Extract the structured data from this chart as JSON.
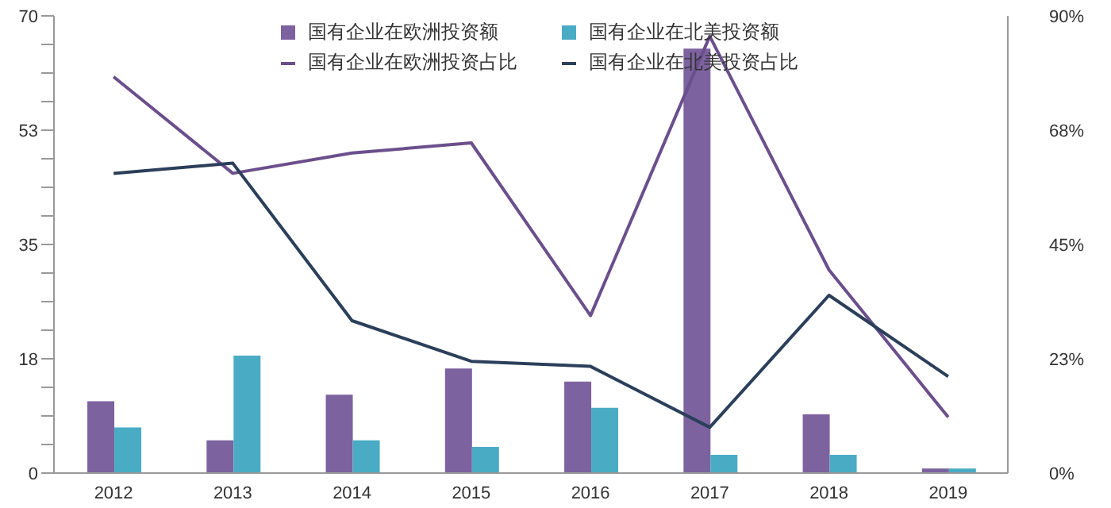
{
  "chart_data": {
    "type": "bar",
    "categories": [
      "2012",
      "2013",
      "2014",
      "2015",
      "2016",
      "2017",
      "2018",
      "2019"
    ],
    "series": [
      {
        "name": "国有企业在欧洲投资额",
        "color": "#7d62a0",
        "values": [
          11,
          5,
          12,
          16,
          14,
          65,
          9,
          0.7
        ]
      },
      {
        "name": "国有企业在北美投资额",
        "color": "#4aabc5",
        "values": [
          7,
          18,
          5,
          4,
          10,
          2.8,
          2.8,
          0.7
        ]
      },
      {
        "name": "国有企业在欧洲投资占比",
        "type": "line",
        "axis": "y2",
        "color": "#6b4f8c",
        "values": [
          78,
          59,
          63,
          65,
          31,
          86,
          40,
          11
        ]
      },
      {
        "name": "国有企业在北美投资占比",
        "type": "line",
        "axis": "y2",
        "color": "#2b3f5a",
        "values": [
          59,
          61,
          30,
          22,
          21,
          9,
          35,
          19
        ]
      }
    ],
    "ylim": [
      0,
      70
    ],
    "yticks": [
      0,
      {
        "value": 4.375,
        "label": null
      },
      {
        "value": 8.75,
        "label": null
      },
      {
        "value": 13.125,
        "label": null
      },
      {
        "value": 17.5,
        "label": "18"
      },
      {
        "value": 21.875,
        "label": null
      },
      {
        "value": 26.25,
        "label": null
      },
      {
        "value": 30.625,
        "label": null
      },
      35,
      {
        "value": 39.375,
        "label": null
      },
      {
        "value": 43.75,
        "label": null
      },
      {
        "value": 48.125,
        "label": null
      },
      {
        "value": 52.5,
        "label": "53"
      },
      {
        "value": 56.875,
        "label": null
      },
      {
        "value": 61.25,
        "label": null
      },
      {
        "value": 65.625,
        "label": null
      },
      70
    ],
    "y2lim": [
      0,
      90
    ],
    "y2ticks": [
      {
        "value": 0,
        "label": "0%"
      },
      {
        "value": 22.5,
        "label": "23%"
      },
      {
        "value": 45,
        "label": "45%"
      },
      {
        "value": 67.5,
        "label": "68%"
      },
      {
        "value": 90,
        "label": "90%"
      }
    ],
    "grid": false,
    "legend": "top",
    "marker": "none",
    "line_style": "solid"
  }
}
